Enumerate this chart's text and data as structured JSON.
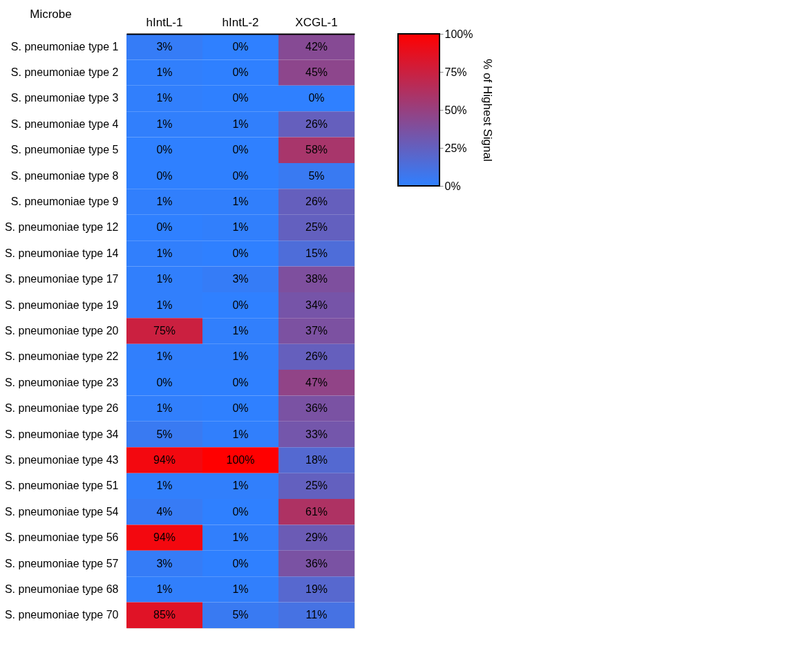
{
  "chart_data": {
    "type": "heatmap",
    "categories": [
      "hIntL-1",
      "hIntL-2",
      "XCGL-1"
    ],
    "ylabel": "Microbe",
    "y_categories": [
      "S. pneumoniae type 1",
      "S. pneumoniae type 2",
      "S. pneumoniae type 3",
      "S. pneumoniae type 4",
      "S. pneumoniae type 5",
      "S. pneumoniae type 8",
      "S. pneumoniae type 9",
      "S. pneumoniae type 12",
      "S. pneumoniae type 14",
      "S. pneumoniae type 17",
      "S. pneumoniae type 19",
      "S. pneumoniae type 20",
      "S. pneumoniae type 22",
      "S. pneumoniae type 23",
      "S. pneumoniae type 26",
      "S. pneumoniae type 34",
      "S. pneumoniae type 43",
      "S. pneumoniae type 51",
      "S. pneumoniae type 54",
      "S. pneumoniae type 56",
      "S. pneumoniae type 57",
      "S. pneumoniae type 68",
      "S. pneumoniae type 70"
    ],
    "cells": [
      [
        3,
        0,
        42
      ],
      [
        1,
        0,
        45
      ],
      [
        1,
        0,
        0
      ],
      [
        1,
        1,
        26
      ],
      [
        0,
        0,
        58
      ],
      [
        0,
        0,
        5
      ],
      [
        1,
        1,
        26
      ],
      [
        0,
        1,
        25
      ],
      [
        1,
        0,
        15
      ],
      [
        1,
        3,
        38
      ],
      [
        1,
        0,
        34
      ],
      [
        75,
        1,
        37
      ],
      [
        1,
        1,
        26
      ],
      [
        0,
        0,
        47
      ],
      [
        1,
        0,
        36
      ],
      [
        5,
        1,
        33
      ],
      [
        94,
        100,
        18
      ],
      [
        1,
        1,
        25
      ],
      [
        4,
        0,
        61
      ],
      [
        94,
        1,
        29
      ],
      [
        3,
        0,
        36
      ],
      [
        1,
        1,
        19
      ],
      [
        85,
        5,
        11
      ]
    ],
    "cell_labels": [
      [
        "3%",
        "0%",
        "42%"
      ],
      [
        "1%",
        "0%",
        "45%"
      ],
      [
        "1%",
        "0%",
        "0%"
      ],
      [
        "1%",
        "1%",
        "26%"
      ],
      [
        "0%",
        "0%",
        "58%"
      ],
      [
        "0%",
        "0%",
        "5%"
      ],
      [
        "1%",
        "1%",
        "26%"
      ],
      [
        "0%",
        "1%",
        "25%"
      ],
      [
        "1%",
        "0%",
        "15%"
      ],
      [
        "1%",
        "3%",
        "38%"
      ],
      [
        "1%",
        "0%",
        "34%"
      ],
      [
        "75%",
        "1%",
        "37%"
      ],
      [
        "1%",
        "1%",
        "26%"
      ],
      [
        "0%",
        "0%",
        "47%"
      ],
      [
        "1%",
        "0%",
        "36%"
      ],
      [
        "5%",
        "1%",
        "33%"
      ],
      [
        "94%",
        "100%",
        "18%"
      ],
      [
        "1%",
        "1%",
        "25%"
      ],
      [
        "4%",
        "0%",
        "61%"
      ],
      [
        "94%",
        "1%",
        "29%"
      ],
      [
        "3%",
        "0%",
        "36%"
      ],
      [
        "1%",
        "1%",
        "19%"
      ],
      [
        "85%",
        "5%",
        "11%"
      ]
    ],
    "clabel": "% of Highest Signal",
    "clim": [
      0,
      100
    ],
    "cticks": [
      {
        "value": 0,
        "label": "0%"
      },
      {
        "value": 25,
        "label": "25%"
      },
      {
        "value": 50,
        "label": "50%"
      },
      {
        "value": 75,
        "label": "75%"
      },
      {
        "value": 100,
        "label": "100%"
      }
    ]
  }
}
